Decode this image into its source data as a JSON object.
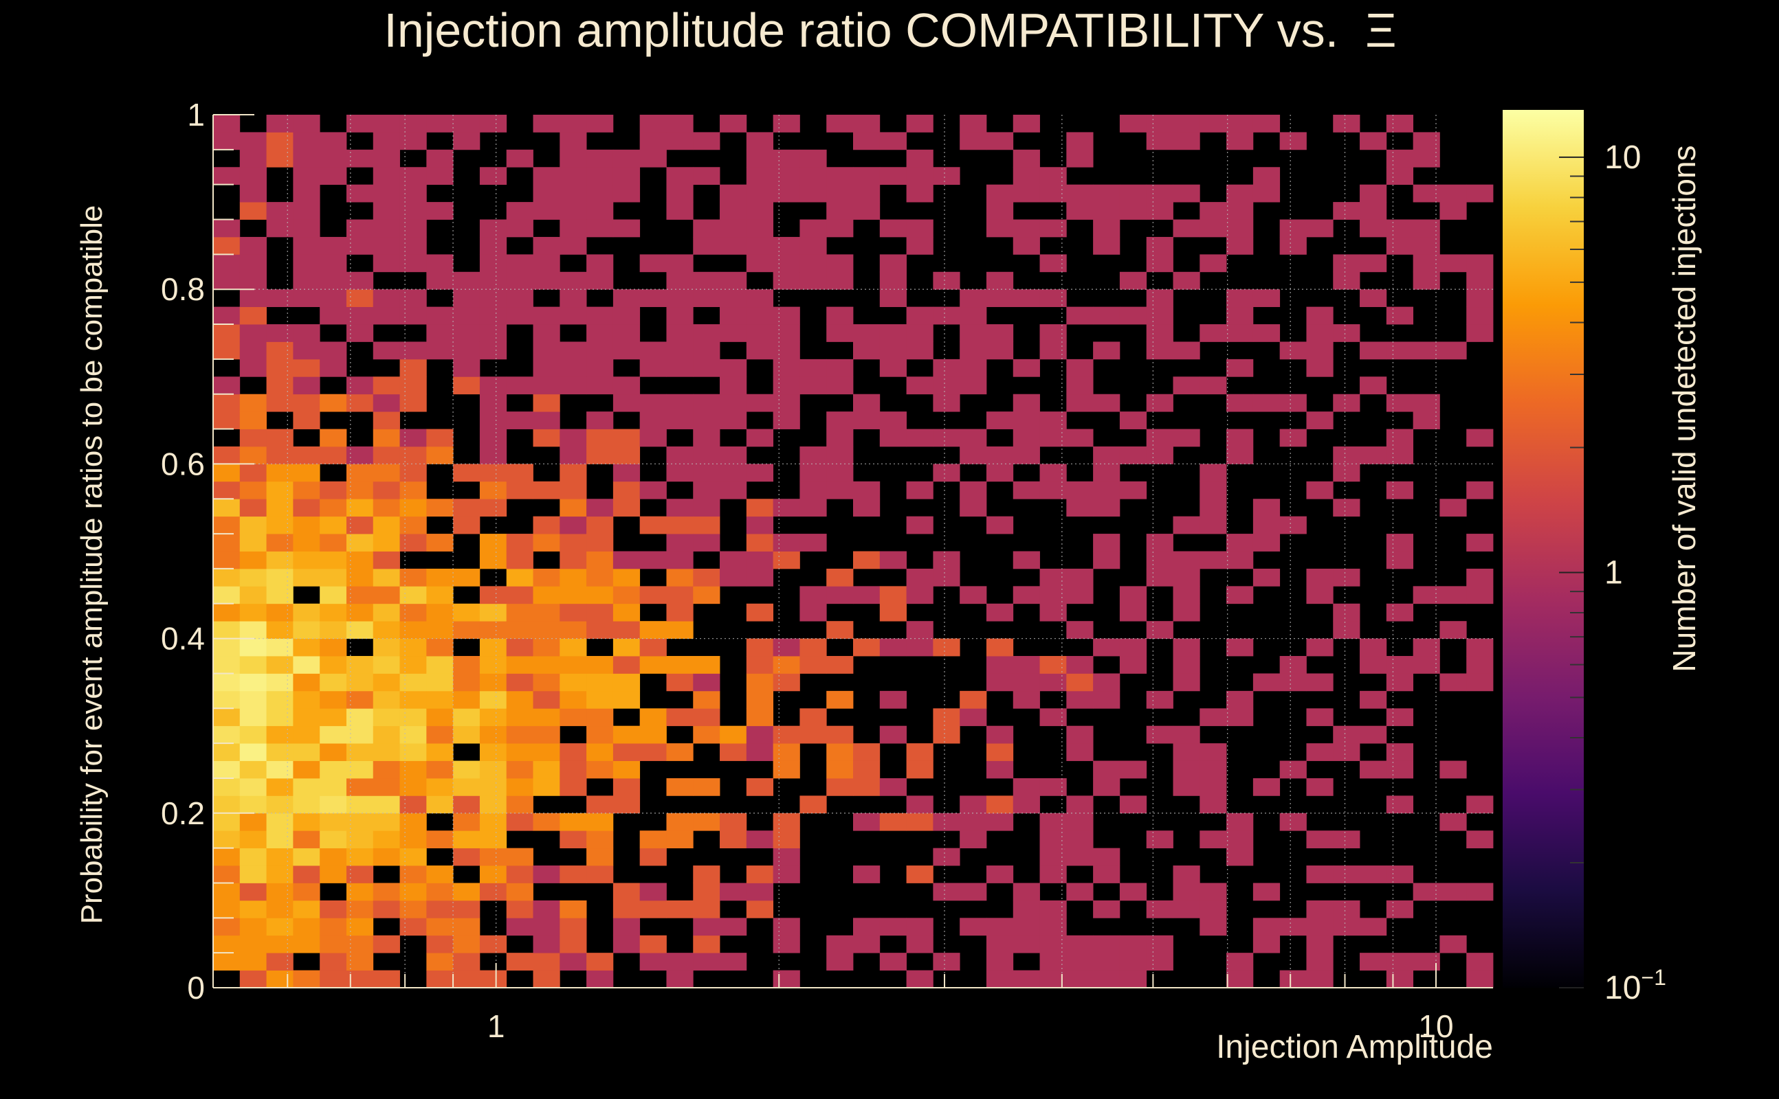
{
  "chart_data": {
    "type": "heatmap",
    "title": "Injection amplitude ratio COMPATIBILITY vs.  Ξ",
    "xlabel": "Injection Amplitude",
    "ylabel": "Probability for event amplitude ratios to be compatible",
    "zlabel": "Number of valid undetected injections",
    "x_scale": "log",
    "x_range": [
      0.5,
      11.5
    ],
    "x_ticks": [
      {
        "value": 1,
        "label": "1"
      },
      {
        "value": 10,
        "label": "10"
      }
    ],
    "y_range": [
      0,
      1
    ],
    "y_ticks": [
      {
        "value": 0,
        "label": "0"
      },
      {
        "value": 0.2,
        "label": "0.2"
      },
      {
        "value": 0.4,
        "label": "0.4"
      },
      {
        "value": 0.6,
        "label": "0.6"
      },
      {
        "value": 0.8,
        "label": "0.8"
      },
      {
        "value": 1,
        "label": "1"
      }
    ],
    "z_scale": "log",
    "z_range": [
      0.1,
      13
    ],
    "z_ticks": [
      {
        "value": 0.1,
        "label": "10",
        "exponent": "−1"
      },
      {
        "value": 1,
        "label": "1",
        "exponent": ""
      },
      {
        "value": 10,
        "label": "10",
        "exponent": ""
      }
    ],
    "grid": true,
    "colormap": "inferno",
    "colormap_stops": [
      "#000004",
      "#1b0c41",
      "#4a0c6b",
      "#781c6d",
      "#a52c60",
      "#cf4446",
      "#ed6925",
      "#fb9b06",
      "#f7d13d",
      "#fcffa4"
    ],
    "n_xbins": 48,
    "n_ybins": 50,
    "bins_description": "Cell counts estimated from the rendered colours: highest density (about 6 to 12 injections per bin) at injection amplitude 0.5 to 1.5 and probability 0.2 to 0.5; density falls with amplitude and most high-amplitude bins above 5 are empty or hold single counts.",
    "seed": 917
  }
}
